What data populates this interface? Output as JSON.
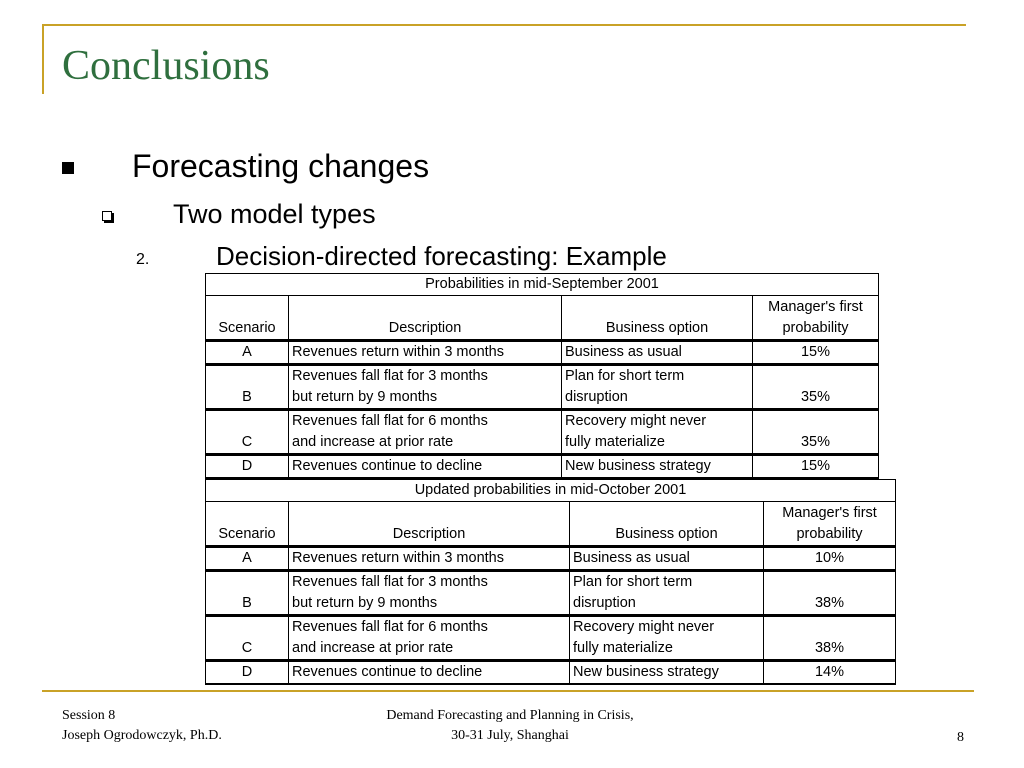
{
  "title": "Conclusions",
  "bullets": {
    "level1": "Forecasting changes",
    "level2": "Two model types",
    "level3_number": "2.",
    "level3": "Decision-directed forecasting:  Example"
  },
  "tables": [
    {
      "caption": "Probabilities in mid-September 2001",
      "headers": {
        "scenario": "Scenario",
        "description": "Description",
        "option": "Business option",
        "prob_line1": "Manager's first",
        "prob_line2": "probability"
      },
      "rows": [
        {
          "scenario": "A",
          "desc1": "Revenues return within 3 months",
          "desc2": "",
          "opt1": "Business as usual",
          "opt2": "",
          "prob": "15%"
        },
        {
          "scenario": "B",
          "desc1": "Revenues fall flat for 3 months",
          "desc2": "but return by 9 months",
          "opt1": "Plan for short term",
          "opt2": "disruption",
          "prob": "35%"
        },
        {
          "scenario": "C",
          "desc1": "Revenues fall flat for 6 months",
          "desc2": "and increase at prior rate",
          "opt1": "Recovery might never",
          "opt2": "fully materialize",
          "prob": "35%"
        },
        {
          "scenario": "D",
          "desc1": "Revenues continue to decline",
          "desc2": "",
          "opt1": "New business strategy",
          "opt2": "",
          "prob": "15%"
        }
      ]
    },
    {
      "caption": "Updated probabilities in mid-October 2001",
      "headers": {
        "scenario": "Scenario",
        "description": "Description",
        "option": "Business option",
        "prob_line1": "Manager's first",
        "prob_line2": "probability"
      },
      "rows": [
        {
          "scenario": "A",
          "desc1": "Revenues return within 3 months",
          "desc2": "",
          "opt1": "Business as usual",
          "opt2": "",
          "prob": "10%"
        },
        {
          "scenario": "B",
          "desc1": "Revenues fall flat for 3 months",
          "desc2": "but return by 9 months",
          "opt1": "Plan for short term",
          "opt2": "disruption",
          "prob": "38%"
        },
        {
          "scenario": "C",
          "desc1": "Revenues fall flat for 6 months",
          "desc2": "and increase at prior rate",
          "opt1": "Recovery might never",
          "opt2": "fully materialize",
          "prob": "38%"
        },
        {
          "scenario": "D",
          "desc1": "Revenues continue to decline",
          "desc2": "",
          "opt1": "New business strategy",
          "opt2": "",
          "prob": "14%"
        }
      ]
    }
  ],
  "footer": {
    "session": "Session 8",
    "author": "Joseph Ogrodowczyk, Ph.D.",
    "event_line1": "Demand Forecasting and Planning in Crisis,",
    "event_line2": "30-31 July, Shanghai",
    "page": "8"
  },
  "colors": {
    "title": "#2f6f3e",
    "accent_rule": "#c9a227"
  }
}
